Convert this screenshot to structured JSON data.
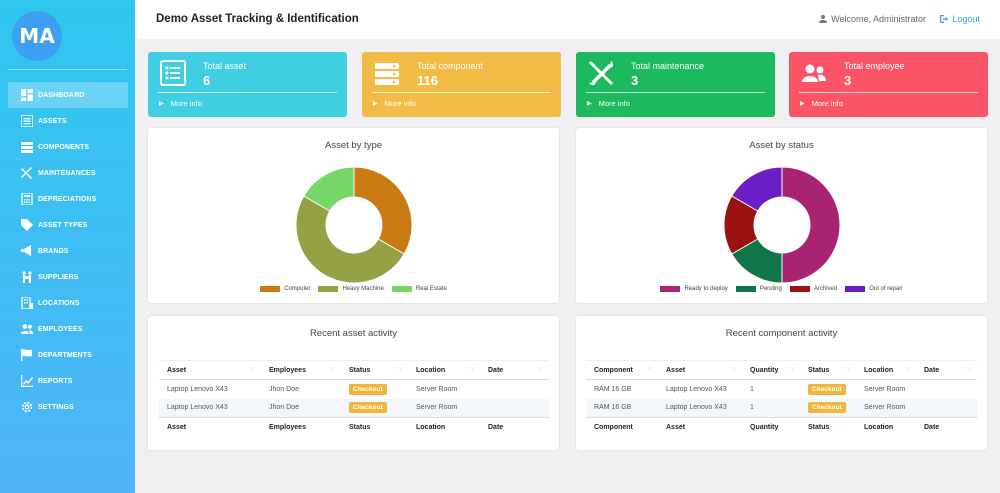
{
  "app": {
    "logo_text": "MA",
    "title": "Demo Asset Tracking & Identification",
    "welcome": "Welcome, Administrator",
    "logout": "Logout"
  },
  "sidebar": {
    "items": [
      {
        "label": "DASHBOARD",
        "icon": "dashboard-icon",
        "active": true
      },
      {
        "label": "ASSETS",
        "icon": "list-icon"
      },
      {
        "label": "COMPONENTS",
        "icon": "server-icon"
      },
      {
        "label": "MAINTENANCES",
        "icon": "wrench-icon"
      },
      {
        "label": "DEPRECIATIONS",
        "icon": "calculator-icon"
      },
      {
        "label": "ASSET TYPES",
        "icon": "tag-icon"
      },
      {
        "label": "BRANDS",
        "icon": "bullhorn-icon"
      },
      {
        "label": "SUPPLIERS",
        "icon": "people-carry-icon"
      },
      {
        "label": "LOCATIONS",
        "icon": "building-icon"
      },
      {
        "label": "EMPLOYEES",
        "icon": "users-icon"
      },
      {
        "label": "DEPARTMENTS",
        "icon": "flag-icon"
      },
      {
        "label": "REPORTS",
        "icon": "chart-line-icon"
      },
      {
        "label": "SETTINGS",
        "icon": "gear-icon"
      }
    ]
  },
  "cards": [
    {
      "label": "Total asset",
      "value": "6",
      "more": "More info",
      "color": "#40cfe2",
      "icon": "list-icon"
    },
    {
      "label": "Total component",
      "value": "116",
      "more": "More info",
      "color": "#f2bb45",
      "icon": "server-icon"
    },
    {
      "label": "Total maintenance",
      "value": "3",
      "more": "More info",
      "color": "#1db95f",
      "icon": "tools-icon"
    },
    {
      "label": "Total employee",
      "value": "3",
      "more": "More info",
      "color": "#fb5466",
      "icon": "users-icon"
    }
  ],
  "chart_data": [
    {
      "type": "pie",
      "title": "Asset by type",
      "donut": true,
      "legend_position": "bottom",
      "categories": [
        "Computer",
        "Heavy Machine",
        "Real Estate"
      ],
      "values": [
        2,
        3,
        1
      ],
      "colors": [
        "#c97a12",
        "#96a044",
        "#77d766"
      ]
    },
    {
      "type": "pie",
      "title": "Asset by status",
      "donut": true,
      "legend_position": "bottom",
      "categories": [
        "Ready to deploy",
        "Pending",
        "Archived",
        "Out of repair"
      ],
      "values": [
        3,
        1,
        1,
        1
      ],
      "colors": [
        "#a82470",
        "#10764a",
        "#9b1212",
        "#6a1ec6"
      ]
    }
  ],
  "asset_activity": {
    "title": "Recent asset activity",
    "columns": [
      "Asset",
      "Employees",
      "Status",
      "Location",
      "Date"
    ],
    "rows": [
      {
        "asset": "Laptop Lenovo X43",
        "employee": "Jhon Doe",
        "status": "Checkout",
        "location": "Server Room",
        "date": ""
      },
      {
        "asset": "Laptop Lenovo X43",
        "employee": "Jhon Doe",
        "status": "Checkout",
        "location": "Server Room",
        "date": ""
      }
    ]
  },
  "component_activity": {
    "title": "Recent component activity",
    "columns": [
      "Component",
      "Asset",
      "Quantity",
      "Status",
      "Location",
      "Date"
    ],
    "rows": [
      {
        "component": "RAM 16 GB",
        "asset": "Laptop Lenovo X43",
        "quantity": "1",
        "status": "Checkout",
        "location": "Server Room",
        "date": ""
      },
      {
        "component": "RAM 16 GB",
        "asset": "Laptop Lenovo X43",
        "quantity": "1",
        "status": "Checkout",
        "location": "Server Room",
        "date": ""
      }
    ]
  },
  "sort_glyph": "↑↓"
}
